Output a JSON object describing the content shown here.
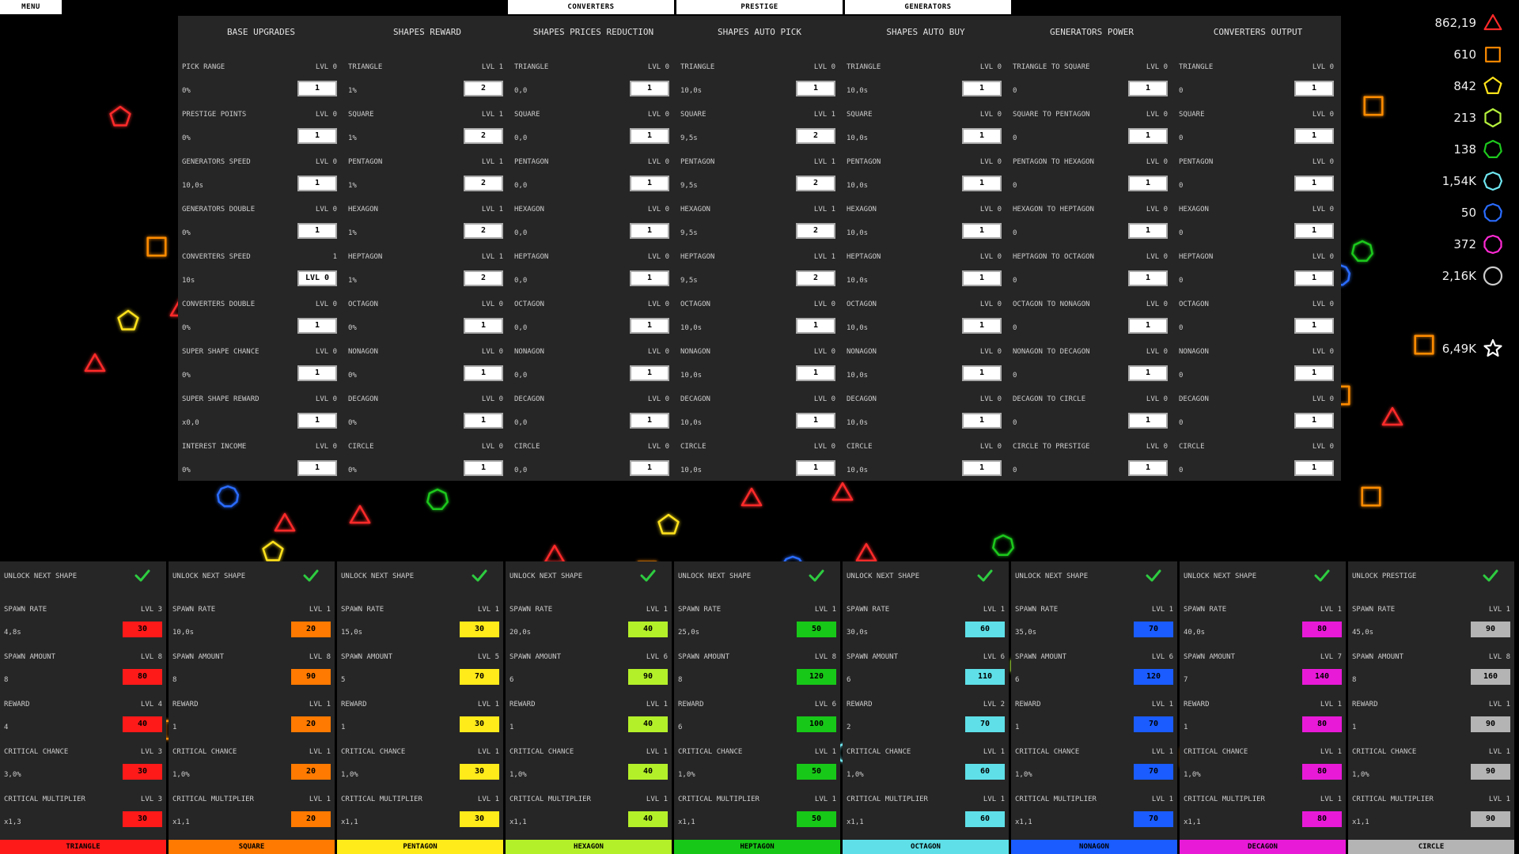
{
  "top_bar": {
    "menu_label": "MENU",
    "tabs": [
      {
        "label": "CONVERTERS",
        "active": false
      },
      {
        "label": "PRESTIGE",
        "active": true
      },
      {
        "label": "GENERATORS",
        "active": false
      }
    ]
  },
  "upgrade_columns": [
    {
      "title": "BASE UPGRADES",
      "rows": [
        {
          "name": "PICK RANGE",
          "level": "LVL 0",
          "value": "0%",
          "input": "1"
        },
        {
          "name": "PRESTIGE POINTS",
          "level": "LVL 0",
          "value": "0%",
          "input": "1"
        },
        {
          "name": "GENERATORS SPEED",
          "level": "LVL 0",
          "value": "10,0s",
          "input": "1"
        },
        {
          "name": "GENERATORS DOUBLE",
          "level": "LVL 0",
          "value": "0%",
          "input": "1"
        },
        {
          "name": "CONVERTERS SPEED",
          "level": "1",
          "value": "10s",
          "input": "LVL 0"
        },
        {
          "name": "CONVERTERS DOUBLE",
          "level": "LVL 0",
          "value": "0%",
          "input": "1"
        },
        {
          "name": "SUPER SHAPE CHANCE",
          "level": "LVL 0",
          "value": "0%",
          "input": "1"
        },
        {
          "name": "SUPER SHAPE REWARD",
          "level": "LVL 0",
          "value": "x0,0",
          "input": "1"
        },
        {
          "name": "INTEREST INCOME",
          "level": "LVL 0",
          "value": "0%",
          "input": "1"
        }
      ]
    },
    {
      "title": "SHAPES REWARD",
      "rows": [
        {
          "name": "TRIANGLE",
          "level": "LVL 1",
          "value": "1%",
          "input": "2"
        },
        {
          "name": "SQUARE",
          "level": "LVL 1",
          "value": "1%",
          "input": "2"
        },
        {
          "name": "PENTAGON",
          "level": "LVL 1",
          "value": "1%",
          "input": "2"
        },
        {
          "name": "HEXAGON",
          "level": "LVL 1",
          "value": "1%",
          "input": "2"
        },
        {
          "name": "HEPTAGON",
          "level": "LVL 1",
          "value": "1%",
          "input": "2"
        },
        {
          "name": "OCTAGON",
          "level": "LVL 0",
          "value": "0%",
          "input": "1"
        },
        {
          "name": "NONAGON",
          "level": "LVL 0",
          "value": "0%",
          "input": "1"
        },
        {
          "name": "DECAGON",
          "level": "LVL 0",
          "value": "0%",
          "input": "1"
        },
        {
          "name": "CIRCLE",
          "level": "LVL 0",
          "value": "0%",
          "input": "1"
        }
      ]
    },
    {
      "title": "SHAPES PRICES REDUCTION",
      "rows": [
        {
          "name": "TRIANGLE",
          "level": "LVL 0",
          "value": "0,0",
          "input": "1"
        },
        {
          "name": "SQUARE",
          "level": "LVL 0",
          "value": "0,0",
          "input": "1"
        },
        {
          "name": "PENTAGON",
          "level": "LVL 0",
          "value": "0,0",
          "input": "1"
        },
        {
          "name": "HEXAGON",
          "level": "LVL 0",
          "value": "0,0",
          "input": "1"
        },
        {
          "name": "HEPTAGON",
          "level": "LVL 0",
          "value": "0,0",
          "input": "1"
        },
        {
          "name": "OCTAGON",
          "level": "LVL 0",
          "value": "0,0",
          "input": "1"
        },
        {
          "name": "NONAGON",
          "level": "LVL 0",
          "value": "0,0",
          "input": "1"
        },
        {
          "name": "DECAGON",
          "level": "LVL 0",
          "value": "0,0",
          "input": "1"
        },
        {
          "name": "CIRCLE",
          "level": "LVL 0",
          "value": "0,0",
          "input": "1"
        }
      ]
    },
    {
      "title": "SHAPES AUTO PICK",
      "rows": [
        {
          "name": "TRIANGLE",
          "level": "LVL 0",
          "value": "10,0s",
          "input": "1"
        },
        {
          "name": "SQUARE",
          "level": "LVL 1",
          "value": "9,5s",
          "input": "2"
        },
        {
          "name": "PENTAGON",
          "level": "LVL 1",
          "value": "9,5s",
          "input": "2"
        },
        {
          "name": "HEXAGON",
          "level": "LVL 1",
          "value": "9,5s",
          "input": "2"
        },
        {
          "name": "HEPTAGON",
          "level": "LVL 1",
          "value": "9,5s",
          "input": "2"
        },
        {
          "name": "OCTAGON",
          "level": "LVL 0",
          "value": "10,0s",
          "input": "1"
        },
        {
          "name": "NONAGON",
          "level": "LVL 0",
          "value": "10,0s",
          "input": "1"
        },
        {
          "name": "DECAGON",
          "level": "LVL 0",
          "value": "10,0s",
          "input": "1"
        },
        {
          "name": "CIRCLE",
          "level": "LVL 0",
          "value": "10,0s",
          "input": "1"
        }
      ]
    },
    {
      "title": "SHAPES AUTO BUY",
      "rows": [
        {
          "name": "TRIANGLE",
          "level": "LVL 0",
          "value": "10,0s",
          "input": "1"
        },
        {
          "name": "SQUARE",
          "level": "LVL 0",
          "value": "10,0s",
          "input": "1"
        },
        {
          "name": "PENTAGON",
          "level": "LVL 0",
          "value": "10,0s",
          "input": "1"
        },
        {
          "name": "HEXAGON",
          "level": "LVL 0",
          "value": "10,0s",
          "input": "1"
        },
        {
          "name": "HEPTAGON",
          "level": "LVL 0",
          "value": "10,0s",
          "input": "1"
        },
        {
          "name": "OCTAGON",
          "level": "LVL 0",
          "value": "10,0s",
          "input": "1"
        },
        {
          "name": "NONAGON",
          "level": "LVL 0",
          "value": "10,0s",
          "input": "1"
        },
        {
          "name": "DECAGON",
          "level": "LVL 0",
          "value": "10,0s",
          "input": "1"
        },
        {
          "name": "CIRCLE",
          "level": "LVL 0",
          "value": "10,0s",
          "input": "1"
        }
      ]
    },
    {
      "title": "GENERATORS POWER",
      "rows": [
        {
          "name": "TRIANGLE TO SQUARE",
          "level": "LVL 0",
          "value": "0",
          "input": "1"
        },
        {
          "name": "SQUARE TO PENTAGON",
          "level": "LVL 0",
          "value": "0",
          "input": "1"
        },
        {
          "name": "PENTAGON TO HEXAGON",
          "level": "LVL 0",
          "value": "0",
          "input": "1"
        },
        {
          "name": "HEXAGON TO HEPTAGON",
          "level": "LVL 0",
          "value": "0",
          "input": "1"
        },
        {
          "name": "HEPTAGON TO OCTAGON",
          "level": "LVL 0",
          "value": "0",
          "input": "1"
        },
        {
          "name": "OCTAGON TO NONAGON",
          "level": "LVL 0",
          "value": "0",
          "input": "1"
        },
        {
          "name": "NONAGON TO DECAGON",
          "level": "LVL 0",
          "value": "0",
          "input": "1"
        },
        {
          "name": "DECAGON TO CIRCLE",
          "level": "LVL 0",
          "value": "0",
          "input": "1"
        },
        {
          "name": "CIRCLE TO PRESTIGE",
          "level": "LVL 0",
          "value": "0",
          "input": "1"
        }
      ]
    },
    {
      "title": "CONVERTERS OUTPUT",
      "rows": [
        {
          "name": "TRIANGLE",
          "level": "LVL 0",
          "value": "0",
          "input": "1"
        },
        {
          "name": "SQUARE",
          "level": "LVL 0",
          "value": "0",
          "input": "1"
        },
        {
          "name": "PENTAGON",
          "level": "LVL 0",
          "value": "0",
          "input": "1"
        },
        {
          "name": "HEXAGON",
          "level": "LVL 0",
          "value": "0",
          "input": "1"
        },
        {
          "name": "HEPTAGON",
          "level": "LVL 0",
          "value": "0",
          "input": "1"
        },
        {
          "name": "OCTAGON",
          "level": "LVL 0",
          "value": "0",
          "input": "1"
        },
        {
          "name": "NONAGON",
          "level": "LVL 0",
          "value": "0",
          "input": "1"
        },
        {
          "name": "DECAGON",
          "level": "LVL 0",
          "value": "0",
          "input": "1"
        },
        {
          "name": "CIRCLE",
          "level": "LVL 0",
          "value": "0",
          "input": "1"
        }
      ]
    }
  ],
  "resources": [
    {
      "value": "862,19",
      "icon": "triangle-icon",
      "color": "#ff2a2a"
    },
    {
      "value": "610",
      "icon": "square-icon",
      "color": "#ff8c00"
    },
    {
      "value": "842",
      "icon": "pentagon-icon",
      "color": "#ffe21a"
    },
    {
      "value": "213",
      "icon": "hexagon-icon",
      "color": "#b4f03c"
    },
    {
      "value": "138",
      "icon": "heptagon-icon",
      "color": "#1ec81e"
    },
    {
      "value": "1,54K",
      "icon": "octagon-icon",
      "color": "#6fe6f0"
    },
    {
      "value": "50",
      "icon": "nonagon-icon",
      "color": "#2a6cff"
    },
    {
      "value": "372",
      "icon": "decagon-icon",
      "color": "#ff2ad4"
    },
    {
      "value": "2,16K",
      "icon": "circle-icon",
      "color": "#cccccc"
    },
    {
      "value": "6,49K",
      "icon": "star-icon",
      "color": "#ffffff"
    }
  ],
  "shape_panels": [
    {
      "shape": "TRIANGLE",
      "color": "#ff1a1a",
      "unlock_label": "UNLOCK NEXT SHAPE",
      "rows": [
        {
          "name": "SPAWN RATE",
          "level": "LVL 3",
          "value": "4,8s",
          "cost": "30"
        },
        {
          "name": "SPAWN AMOUNT",
          "level": "LVL 8",
          "value": "8",
          "cost": "80"
        },
        {
          "name": "REWARD",
          "level": "LVL 4",
          "value": "4",
          "cost": "40"
        },
        {
          "name": "CRITICAL CHANCE",
          "level": "LVL 3",
          "value": "3,0%",
          "cost": "30"
        },
        {
          "name": "CRITICAL MULTIPLIER",
          "level": "LVL 3",
          "value": "x1,3",
          "cost": "30"
        }
      ]
    },
    {
      "shape": "SQUARE",
      "color": "#ff7a00",
      "unlock_label": "UNLOCK NEXT SHAPE",
      "rows": [
        {
          "name": "SPAWN RATE",
          "level": "LVL 1",
          "value": "10,0s",
          "cost": "20"
        },
        {
          "name": "SPAWN AMOUNT",
          "level": "LVL 8",
          "value": "8",
          "cost": "90"
        },
        {
          "name": "REWARD",
          "level": "LVL 1",
          "value": "1",
          "cost": "20"
        },
        {
          "name": "CRITICAL CHANCE",
          "level": "LVL 1",
          "value": "1,0%",
          "cost": "20"
        },
        {
          "name": "CRITICAL MULTIPLIER",
          "level": "LVL 1",
          "value": "x1,1",
          "cost": "20"
        }
      ]
    },
    {
      "shape": "PENTAGON",
      "color": "#ffea1a",
      "unlock_label": "UNLOCK NEXT SHAPE",
      "rows": [
        {
          "name": "SPAWN RATE",
          "level": "LVL 1",
          "value": "15,0s",
          "cost": "30"
        },
        {
          "name": "SPAWN AMOUNT",
          "level": "LVL 5",
          "value": "5",
          "cost": "70"
        },
        {
          "name": "REWARD",
          "level": "LVL 1",
          "value": "1",
          "cost": "30"
        },
        {
          "name": "CRITICAL CHANCE",
          "level": "LVL 1",
          "value": "1,0%",
          "cost": "30"
        },
        {
          "name": "CRITICAL MULTIPLIER",
          "level": "LVL 1",
          "value": "x1,1",
          "cost": "30"
        }
      ]
    },
    {
      "shape": "HEXAGON",
      "color": "#b4f02a",
      "unlock_label": "UNLOCK NEXT SHAPE",
      "rows": [
        {
          "name": "SPAWN RATE",
          "level": "LVL 1",
          "value": "20,0s",
          "cost": "40"
        },
        {
          "name": "SPAWN AMOUNT",
          "level": "LVL 6",
          "value": "6",
          "cost": "90"
        },
        {
          "name": "REWARD",
          "level": "LVL 1",
          "value": "1",
          "cost": "40"
        },
        {
          "name": "CRITICAL CHANCE",
          "level": "LVL 1",
          "value": "1,0%",
          "cost": "40"
        },
        {
          "name": "CRITICAL MULTIPLIER",
          "level": "LVL 1",
          "value": "x1,1",
          "cost": "40"
        }
      ]
    },
    {
      "shape": "HEPTAGON",
      "color": "#18c818",
      "unlock_label": "UNLOCK NEXT SHAPE",
      "rows": [
        {
          "name": "SPAWN RATE",
          "level": "LVL 1",
          "value": "25,0s",
          "cost": "50"
        },
        {
          "name": "SPAWN AMOUNT",
          "level": "LVL 8",
          "value": "8",
          "cost": "120"
        },
        {
          "name": "REWARD",
          "level": "LVL 6",
          "value": "6",
          "cost": "100"
        },
        {
          "name": "CRITICAL CHANCE",
          "level": "LVL 1",
          "value": "1,0%",
          "cost": "50"
        },
        {
          "name": "CRITICAL MULTIPLIER",
          "level": "LVL 1",
          "value": "x1,1",
          "cost": "50"
        }
      ]
    },
    {
      "shape": "OCTAGON",
      "color": "#5fe0e8",
      "unlock_label": "UNLOCK NEXT SHAPE",
      "rows": [
        {
          "name": "SPAWN RATE",
          "level": "LVL 1",
          "value": "30,0s",
          "cost": "60"
        },
        {
          "name": "SPAWN AMOUNT",
          "level": "LVL 6",
          "value": "6",
          "cost": "110"
        },
        {
          "name": "REWARD",
          "level": "LVL 2",
          "value": "2",
          "cost": "70"
        },
        {
          "name": "CRITICAL CHANCE",
          "level": "LVL 1",
          "value": "1,0%",
          "cost": "60"
        },
        {
          "name": "CRITICAL MULTIPLIER",
          "level": "LVL 1",
          "value": "x1,1",
          "cost": "60"
        }
      ]
    },
    {
      "shape": "NONAGON",
      "color": "#1a5cff",
      "unlock_label": "UNLOCK NEXT SHAPE",
      "rows": [
        {
          "name": "SPAWN RATE",
          "level": "LVL 1",
          "value": "35,0s",
          "cost": "70"
        },
        {
          "name": "SPAWN AMOUNT",
          "level": "LVL 6",
          "value": "6",
          "cost": "120"
        },
        {
          "name": "REWARD",
          "level": "LVL 1",
          "value": "1",
          "cost": "70"
        },
        {
          "name": "CRITICAL CHANCE",
          "level": "LVL 1",
          "value": "1,0%",
          "cost": "70"
        },
        {
          "name": "CRITICAL MULTIPLIER",
          "level": "LVL 1",
          "value": "x1,1",
          "cost": "70"
        }
      ]
    },
    {
      "shape": "DECAGON",
      "color": "#e81ad8",
      "unlock_label": "UNLOCK NEXT SHAPE",
      "rows": [
        {
          "name": "SPAWN RATE",
          "level": "LVL 1",
          "value": "40,0s",
          "cost": "80"
        },
        {
          "name": "SPAWN AMOUNT",
          "level": "LVL 7",
          "value": "7",
          "cost": "140"
        },
        {
          "name": "REWARD",
          "level": "LVL 1",
          "value": "1",
          "cost": "80"
        },
        {
          "name": "CRITICAL CHANCE",
          "level": "LVL 1",
          "value": "1,0%",
          "cost": "80"
        },
        {
          "name": "CRITICAL MULTIPLIER",
          "level": "LVL 1",
          "value": "x1,1",
          "cost": "80"
        }
      ]
    },
    {
      "shape": "CIRCLE",
      "color": "#b4b4b4",
      "unlock_label": "UNLOCK PRESTIGE",
      "rows": [
        {
          "name": "SPAWN RATE",
          "level": "LVL 1",
          "value": "45,0s",
          "cost": "90"
        },
        {
          "name": "SPAWN AMOUNT",
          "level": "LVL 8",
          "value": "8",
          "cost": "160"
        },
        {
          "name": "REWARD",
          "level": "LVL 1",
          "value": "1",
          "cost": "90"
        },
        {
          "name": "CRITICAL CHANCE",
          "level": "LVL 1",
          "value": "1,0%",
          "cost": "90"
        },
        {
          "name": "CRITICAL MULTIPLIER",
          "level": "LVL 1",
          "value": "x1,1",
          "cost": "90"
        }
      ]
    }
  ]
}
